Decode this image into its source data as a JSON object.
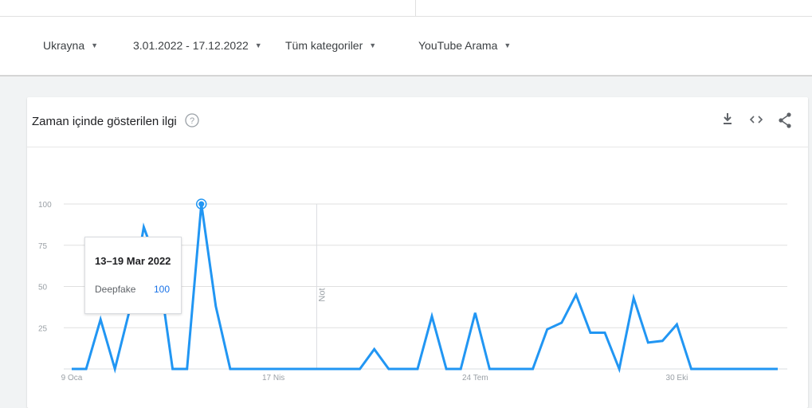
{
  "filters": {
    "country": "Ukrayna",
    "date_range": "3.01.2022 - 17.12.2022",
    "category": "Tüm kategoriler",
    "search_type": "YouTube Arama"
  },
  "card": {
    "title": "Zaman içinde gösterilen ilgi",
    "icons": [
      "help-icon",
      "download-icon",
      "embed-icon",
      "share-icon"
    ]
  },
  "tooltip": {
    "date": "13–19 Mar 2022",
    "series": "Deepfake",
    "value": "100"
  },
  "colors": {
    "line": "#2196f3",
    "accent": "#1a73e8"
  },
  "chart_data": {
    "type": "line",
    "y_ticks": [
      "100",
      "75",
      "50",
      "25"
    ],
    "ylim": [
      0,
      100
    ],
    "x_tick_labels": [
      "9 Oca",
      "17 Nis",
      "24 Tem",
      "30 Eki"
    ],
    "x_tick_index": [
      0,
      14,
      28,
      42
    ],
    "annotation": "Not",
    "annotation_index": 17,
    "highlight_index": 9,
    "series": [
      {
        "name": "Deepfake",
        "values": [
          0,
          0,
          30,
          0,
          35,
          86,
          62,
          0,
          0,
          100,
          38,
          0,
          0,
          0,
          0,
          0,
          0,
          0,
          0,
          0,
          0,
          12,
          0,
          0,
          0,
          32,
          0,
          0,
          34,
          0,
          0,
          0,
          0,
          24,
          28,
          45,
          22,
          22,
          0,
          43,
          16,
          17,
          27,
          0,
          0,
          0,
          0,
          0,
          0,
          0
        ]
      }
    ]
  }
}
